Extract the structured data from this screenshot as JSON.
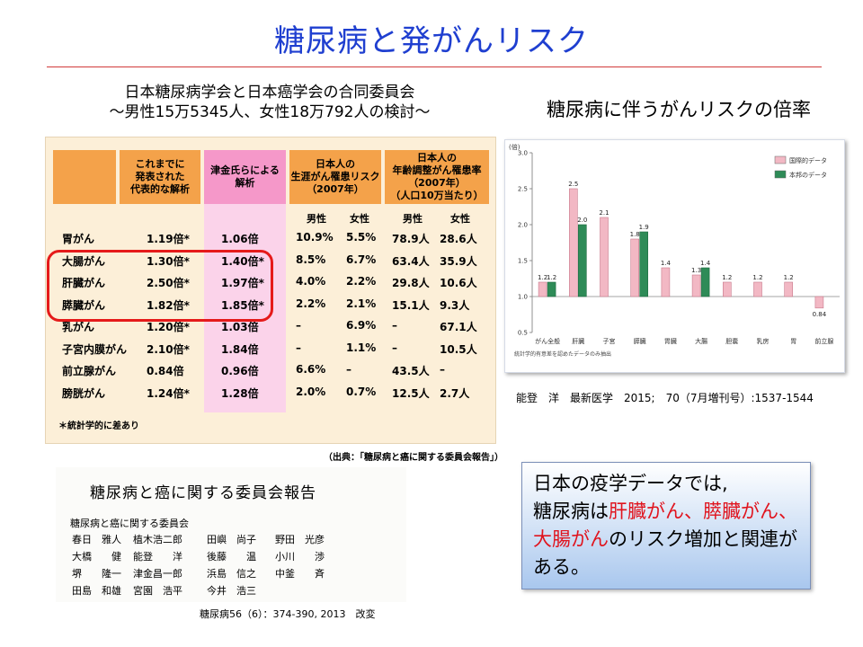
{
  "title": "糖尿病と発がんリスク",
  "left_header": {
    "line1": "日本糖尿病学会と日本癌学会の合同委員会",
    "line2": "～男性15万5345人、女性18万792人の検討～"
  },
  "right_header": "糖尿病に伴うがんリスクの倍率",
  "table": {
    "headers": [
      "これまでに\n発表された\n代表的な解析",
      "津金氏らによる\n解析",
      "日本人の\n生涯がん罹患リスク\n（2007年）",
      "日本人の\n年齢調整がん罹患率\n（2007年）\n（人口10万当たり）"
    ],
    "sub_headers": [
      "男性",
      "女性",
      "男性",
      "女性"
    ],
    "rows": [
      [
        "胃がん",
        "1.19倍*",
        "1.06倍",
        "10.9%",
        "5.5%",
        "78.9人",
        "28.6人"
      ],
      [
        "大腸がん",
        "1.30倍*",
        "1.40倍*",
        "8.5%",
        "6.7%",
        "63.4人",
        "35.9人"
      ],
      [
        "肝臓がん",
        "2.50倍*",
        "1.97倍*",
        "4.0%",
        "2.2%",
        "29.8人",
        "10.6人"
      ],
      [
        "膵臓がん",
        "1.82倍*",
        "1.85倍*",
        "2.2%",
        "2.1%",
        "15.1人",
        "9.3人"
      ],
      [
        "乳がん",
        "1.20倍*",
        "1.03倍",
        "–",
        "6.9%",
        "–",
        "67.1人"
      ],
      [
        "子宮内膜がん",
        "2.10倍*",
        "1.84倍",
        "–",
        "1.1%",
        "–",
        "10.5人"
      ],
      [
        "前立腺がん",
        "0.84倍",
        "0.96倍",
        "6.6%",
        "–",
        "43.5人",
        "–"
      ],
      [
        "膀胱がん",
        "1.24倍*",
        "1.28倍",
        "2.0%",
        "0.7%",
        "12.5人",
        "2.7人"
      ]
    ],
    "note": "＊統計学的に差あり",
    "source": "（出典：「糖尿病と癌に関する委員会報告」）"
  },
  "chart_data": {
    "type": "bar",
    "ylabel": "(倍)",
    "ylim": [
      0.5,
      3.0
    ],
    "yticks": [
      "3.0",
      "2.5",
      "2.0",
      "1.5",
      "1.0",
      "0.5"
    ],
    "categories": [
      "がん全般",
      "肝臓",
      "子宮",
      "膵臓",
      "胃臓",
      "大腸",
      "胆嚢",
      "乳房",
      "胃",
      "前立腺"
    ],
    "series": [
      {
        "name": "国際的データ",
        "color": "#f2b8c4",
        "values": [
          1.2,
          2.5,
          2.1,
          1.8,
          1.4,
          1.3,
          1.2,
          1.2,
          1.2,
          0.84
        ]
      },
      {
        "name": "本邦のデータ",
        "color": "#2e8b57",
        "values": [
          1.2,
          2.0,
          null,
          1.9,
          null,
          1.4,
          null,
          null,
          null,
          null
        ]
      }
    ],
    "value_labels": {
      "intl": [
        "1.2",
        "2.5",
        "2.1",
        "1.8",
        "1.4",
        "1.3",
        "1.2",
        "1.2",
        "1.2",
        "0.84"
      ],
      "jp": [
        "1.2",
        "2.0",
        "",
        "1.9",
        "",
        "1.4",
        "",
        "",
        "",
        ""
      ]
    },
    "footnote": "統計学的有意差を認めたデータのみ抽出"
  },
  "chart_citation": "能登　洋　最新医学　2015;　70（7月増刊号）:1537-1544",
  "report": {
    "title": "糖尿病と癌に関する委員会報告",
    "committee": "糖尿病と癌に関する委員会",
    "members": [
      "春日　雅人",
      "植木浩二郎",
      "田嶼　尚子",
      "野田　光彦",
      "大橋　　健",
      "能登　　洋",
      "後藤　　温",
      "小川　　渉",
      "堺　　隆一",
      "津金昌一郎",
      "浜島　信之",
      "中釜　　斉",
      "田島　和雄",
      "宮園　浩平",
      "今井　浩三",
      ""
    ],
    "citation": "糖尿病56（6）：374-390, 2013　改変"
  },
  "conclusion": {
    "part1": "日本の疫学データでは,",
    "part2": "糖尿病は",
    "highlight": "肝臓がん、膵臓がん、大腸がん",
    "part3": "のリスク増加と関連がある。"
  }
}
